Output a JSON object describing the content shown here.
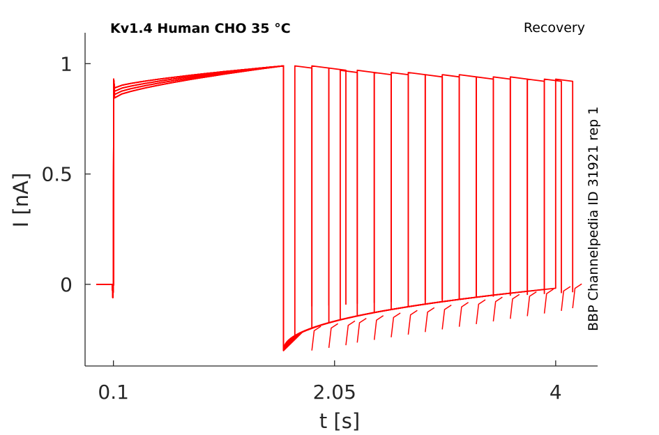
{
  "chart_data": {
    "type": "line",
    "title": "Kv1.4  Human  CHO  35 °C",
    "protocol": "Recovery",
    "side_label": "BBP Channelpedia ID 31921 rep 1",
    "xlabel": "t [s]",
    "ylabel": "I [nA]",
    "xticks": [
      "0.1",
      "2.05",
      "4"
    ],
    "yticks": [
      "0",
      "0.5",
      "1"
    ],
    "xlim": [
      -0.15,
      4.37
    ],
    "ylim": [
      -0.37,
      1.14
    ],
    "grid": false,
    "legend": "none",
    "color": "#ff0000",
    "holding_current": 0.0,
    "prepulse": {
      "start": 0.1,
      "end": 1.6,
      "i_start": 0.89,
      "i_end": 0.99
    },
    "test_pulse_starts": [
      1.7,
      1.85,
      2.0,
      2.1,
      2.25,
      2.4,
      2.55,
      2.7,
      2.85,
      3.0,
      3.15,
      3.3,
      3.45,
      3.6,
      3.75,
      3.9,
      4.0
    ],
    "test_pulse_peaks": [
      0.99,
      0.99,
      0.98,
      0.97,
      0.97,
      0.96,
      0.96,
      0.96,
      0.95,
      0.95,
      0.95,
      0.94,
      0.94,
      0.94,
      0.93,
      0.93,
      0.93
    ],
    "test_pulse_duration": 0.15,
    "recovery_current_start": -0.3,
    "recovery_current_end": -0.01
  }
}
